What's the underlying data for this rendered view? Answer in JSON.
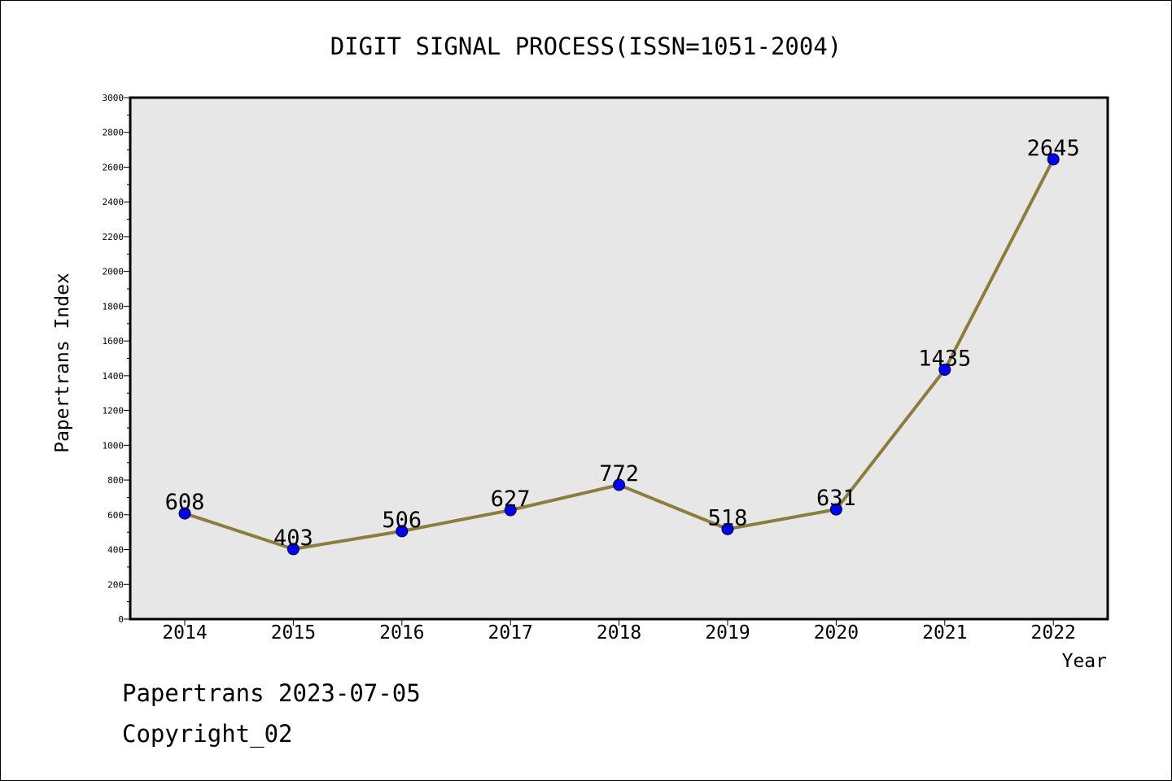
{
  "chart_data": {
    "type": "line",
    "title": "DIGIT SIGNAL PROCESS(ISSN=1051-2004)",
    "xlabel": "Year",
    "ylabel": "Papertrans Index",
    "categories": [
      "2014",
      "2015",
      "2016",
      "2017",
      "2018",
      "2019",
      "2020",
      "2021",
      "2022"
    ],
    "series": [
      {
        "values": [
          608,
          403,
          506,
          627,
          772,
          518,
          631,
          1435,
          2645
        ],
        "data_labels": [
          "608",
          "403",
          "506",
          "627",
          "772",
          "518",
          "631",
          "1435",
          "2645"
        ]
      }
    ],
    "ylim": [
      0,
      3000
    ],
    "y_ticks": [
      0,
      200,
      400,
      600,
      800,
      1000,
      1200,
      1400,
      1600,
      1800,
      2000,
      2200,
      2400,
      2600,
      2800,
      3000
    ],
    "y_tick_labels": [
      "0",
      "200",
      "400",
      "600",
      "800",
      "1000",
      "1200",
      "1400",
      "1600",
      "1800",
      "2000",
      "2200",
      "2400",
      "2600",
      "2800",
      "3000"
    ],
    "grid": false,
    "legend": "none",
    "colors": {
      "line": "#8b7d3a",
      "marker": "#0000ff",
      "plot_background": "#e7e7e7"
    }
  },
  "footer": {
    "line1": "Papertrans 2023-07-05",
    "line2": "Copyright_02"
  }
}
